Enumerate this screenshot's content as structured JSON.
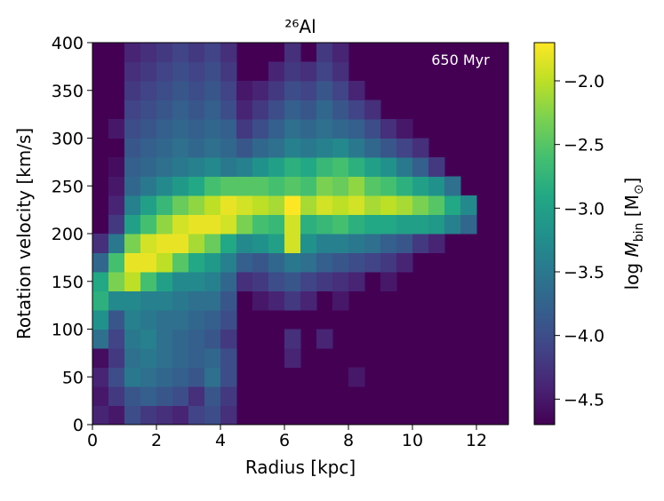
{
  "chart_data": {
    "type": "heatmap",
    "title": "²⁶Al",
    "annotation": "650 Myr",
    "x_label": "Radius [kpc]",
    "y_label": "Rotation velocity [km/s]",
    "colorbar_label": [
      {
        "text": "log "
      },
      {
        "text": "M",
        "italic": true
      },
      {
        "text": "bin",
        "sub": true
      },
      {
        "text": " [M"
      },
      {
        "text": "⊙",
        "sub": true
      },
      {
        "text": "]"
      }
    ],
    "colormap": "viridis",
    "xlim": [
      0,
      13
    ],
    "ylim": [
      0,
      400
    ],
    "xticks": [
      0,
      2,
      4,
      6,
      8,
      10,
      12
    ],
    "yticks": [
      0,
      50,
      100,
      150,
      200,
      250,
      300,
      350,
      400
    ],
    "clim": [
      -4.7,
      -1.7
    ],
    "cticks": [
      {
        "value": -4.5,
        "label": "−4.5"
      },
      {
        "value": -4.0,
        "label": "−4.0"
      },
      {
        "value": -3.5,
        "label": "−3.5"
      },
      {
        "value": -3.0,
        "label": "−3.0"
      },
      {
        "value": -2.5,
        "label": "−2.5"
      },
      {
        "value": -2.0,
        "label": "−2.0"
      }
    ],
    "xbins": [
      0,
      0.5,
      1,
      1.5,
      2,
      2.5,
      3,
      3.5,
      4,
      4.5,
      5,
      5.5,
      6,
      6.5,
      7,
      7.5,
      8,
      8.5,
      9,
      9.5,
      10,
      10.5,
      11,
      11.5,
      12,
      12.5,
      13
    ],
    "ybins": [
      0,
      20,
      40,
      60,
      80,
      100,
      120,
      140,
      160,
      180,
      200,
      220,
      240,
      260,
      280,
      300,
      320,
      340,
      360,
      380,
      400
    ],
    "z": [
      [
        -4.4,
        -4.5,
        -4.0,
        -4.2,
        -4.3,
        -4.4,
        -4.1,
        -4.0,
        -4.3,
        null,
        null,
        null,
        null,
        null,
        null,
        null,
        null,
        null,
        null,
        null,
        null,
        null,
        null,
        null,
        null,
        null
      ],
      [
        -4.5,
        -4.2,
        -3.9,
        -3.8,
        -3.9,
        -4.0,
        -4.3,
        -3.9,
        -4.2,
        null,
        null,
        null,
        null,
        null,
        null,
        null,
        null,
        null,
        null,
        null,
        null,
        null,
        null,
        null,
        null,
        null
      ],
      [
        -4.4,
        -4.0,
        -3.5,
        -3.6,
        -3.7,
        -3.8,
        -3.9,
        -3.6,
        -4.0,
        null,
        null,
        null,
        null,
        null,
        null,
        null,
        -4.5,
        null,
        null,
        null,
        null,
        null,
        null,
        null,
        null,
        null
      ],
      [
        -4.6,
        -4.2,
        -3.6,
        -3.5,
        -3.6,
        -3.7,
        -3.8,
        -3.7,
        -4.0,
        null,
        null,
        null,
        -4.4,
        null,
        null,
        null,
        null,
        null,
        null,
        null,
        null,
        null,
        null,
        null,
        null,
        null
      ],
      [
        -3.6,
        -4.1,
        -3.5,
        -3.4,
        -3.6,
        -3.7,
        -3.8,
        -3.9,
        -4.2,
        null,
        null,
        null,
        -4.3,
        null,
        -4.4,
        null,
        null,
        null,
        null,
        null,
        null,
        null,
        null,
        null,
        null,
        null
      ],
      [
        -3.2,
        -3.9,
        -3.4,
        -3.5,
        -3.6,
        -3.6,
        -3.7,
        -3.8,
        -4.0,
        null,
        null,
        null,
        null,
        null,
        null,
        null,
        null,
        null,
        null,
        null,
        null,
        null,
        null,
        null,
        null,
        null
      ],
      [
        -2.8,
        -3.3,
        -3.3,
        -3.4,
        -3.4,
        -3.5,
        -3.6,
        -3.6,
        -3.9,
        null,
        -4.5,
        -4.4,
        -4.2,
        -4.4,
        null,
        -4.5,
        null,
        null,
        null,
        null,
        null,
        null,
        null,
        null,
        null,
        null
      ],
      [
        -2.9,
        -2.3,
        -2.0,
        -2.6,
        -3.0,
        -3.3,
        -3.3,
        -3.4,
        -3.7,
        -4.3,
        -4.2,
        -4.0,
        -3.9,
        -4.1,
        -4.2,
        -4.3,
        -4.4,
        null,
        -4.5,
        null,
        null,
        null,
        null,
        null,
        null,
        null
      ],
      [
        -3.7,
        -2.6,
        -1.8,
        -1.8,
        -2.0,
        -2.5,
        -2.9,
        -3.1,
        -3.4,
        -3.8,
        -3.9,
        -3.7,
        -3.5,
        -3.6,
        -3.8,
        -3.9,
        -4.0,
        -4.1,
        -4.2,
        -4.4,
        null,
        null,
        null,
        null,
        null,
        null
      ],
      [
        -4.3,
        -3.5,
        -2.3,
        -1.9,
        -1.8,
        -1.8,
        -2.1,
        -2.4,
        -2.9,
        -3.3,
        -3.2,
        -3.0,
        -1.9,
        -3.2,
        -3.4,
        -3.4,
        -3.5,
        -3.6,
        -3.8,
        -3.9,
        -4.2,
        -4.4,
        null,
        null,
        null,
        null
      ],
      [
        null,
        -4.2,
        -3.0,
        -2.6,
        -2.2,
        -1.9,
        -1.8,
        -1.8,
        -1.9,
        -2.3,
        -2.6,
        -2.7,
        -1.9,
        -2.8,
        -2.7,
        -2.6,
        -2.8,
        -2.9,
        -2.9,
        -3.0,
        -3.0,
        -3.1,
        -3.4,
        -3.7,
        null,
        null
      ],
      [
        null,
        -4.4,
        -3.4,
        -3.0,
        -2.7,
        -2.4,
        -2.2,
        -2.0,
        -1.8,
        -1.9,
        -2.0,
        -2.1,
        -1.7,
        -2.1,
        -1.9,
        -2.0,
        -1.9,
        -2.1,
        -2.0,
        -2.1,
        -2.3,
        -2.5,
        -2.9,
        -3.3,
        null,
        null
      ],
      [
        null,
        -4.5,
        -3.7,
        -3.5,
        -3.3,
        -3.1,
        -2.9,
        -2.6,
        -2.5,
        -2.5,
        -2.5,
        -2.6,
        -2.5,
        -2.6,
        -2.3,
        -2.4,
        -2.2,
        -2.5,
        -2.6,
        -2.8,
        -3.0,
        -3.2,
        -3.6,
        null,
        null,
        null
      ],
      [
        null,
        -4.6,
        -3.8,
        -3.7,
        -3.6,
        -3.5,
        -3.4,
        -3.3,
        -3.5,
        -3.4,
        -3.2,
        -3.0,
        -2.8,
        -2.9,
        -2.7,
        -2.6,
        -2.8,
        -3.0,
        -3.2,
        -3.5,
        -3.8,
        -4.2,
        null,
        null,
        null,
        null
      ],
      [
        null,
        null,
        -3.9,
        -3.8,
        -3.7,
        -3.6,
        -3.7,
        -3.6,
        -3.7,
        -3.9,
        -3.7,
        -3.6,
        -3.4,
        -3.5,
        -3.4,
        -3.3,
        -3.5,
        -3.7,
        -3.9,
        -4.1,
        -4.3,
        null,
        null,
        null,
        null,
        null
      ],
      [
        null,
        -4.5,
        -4.0,
        -3.9,
        -3.8,
        -3.7,
        -3.8,
        -3.7,
        -3.8,
        -4.2,
        -4.0,
        -3.8,
        -3.6,
        -3.7,
        -3.6,
        -3.7,
        -3.8,
        -4.0,
        -4.3,
        -4.5,
        null,
        null,
        null,
        null,
        null,
        null
      ],
      [
        null,
        null,
        -4.1,
        -4.0,
        -3.9,
        -3.8,
        -3.9,
        -3.8,
        -4.0,
        -4.4,
        -4.2,
        -4.0,
        -3.8,
        -3.9,
        -3.7,
        -3.9,
        -4.1,
        -4.3,
        null,
        null,
        null,
        null,
        null,
        null,
        null,
        null
      ],
      [
        null,
        null,
        -4.2,
        -4.1,
        -4.0,
        -3.9,
        -4.0,
        -3.9,
        -4.1,
        -4.5,
        -4.4,
        -4.2,
        -4.0,
        -4.1,
        -3.9,
        -4.1,
        -4.4,
        null,
        null,
        null,
        null,
        null,
        null,
        null,
        null,
        null
      ],
      [
        null,
        null,
        -4.3,
        -4.2,
        -4.1,
        -4.0,
        -4.1,
        -4.0,
        -4.2,
        null,
        null,
        -4.4,
        -4.2,
        -4.3,
        -4.1,
        -4.3,
        null,
        null,
        null,
        null,
        null,
        null,
        null,
        null,
        null,
        null
      ],
      [
        null,
        null,
        -4.4,
        -4.3,
        -4.2,
        -4.1,
        -4.2,
        -4.1,
        -4.3,
        null,
        null,
        null,
        -4.3,
        null,
        -4.2,
        -4.4,
        null,
        null,
        null,
        null,
        null,
        null,
        null,
        null,
        null,
        null
      ]
    ]
  }
}
